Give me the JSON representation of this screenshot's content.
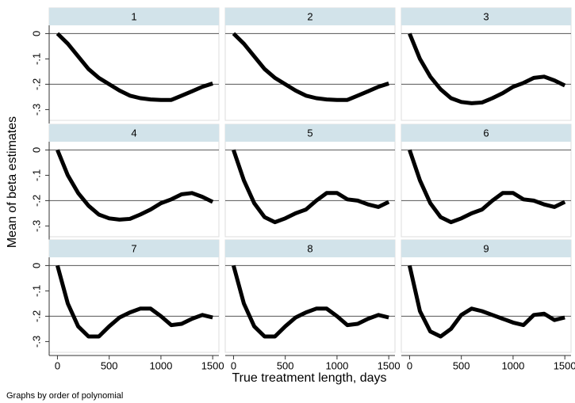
{
  "chart_data": {
    "type": "line",
    "ylabel": "Mean of beta estimates",
    "xlabel": "True treatment length, days",
    "note": "Graphs by order of polynomial",
    "color": "#000000",
    "header_color": "#d2e3ea",
    "xlim": [
      -80,
      1560
    ],
    "ylim": [
      -0.33,
      0.02
    ],
    "xticks": [
      0,
      500,
      1000,
      1500
    ],
    "yticks": [
      {
        "value": 0,
        "label": "0"
      },
      {
        "value": -0.1,
        "label": "-.1"
      },
      {
        "value": -0.2,
        "label": "-.2"
      },
      {
        "value": -0.3,
        "label": "-.3"
      }
    ],
    "ygrid": [
      0,
      -0.2
    ],
    "x": [
      0,
      100,
      200,
      300,
      400,
      500,
      600,
      700,
      800,
      900,
      1000,
      1100,
      1200,
      1300,
      1400,
      1500
    ],
    "panels": [
      {
        "title": "1",
        "values": [
          0,
          -0.04,
          -0.09,
          -0.14,
          -0.175,
          -0.2,
          -0.225,
          -0.245,
          -0.255,
          -0.26,
          -0.262,
          -0.262,
          -0.245,
          -0.228,
          -0.21,
          -0.197
        ]
      },
      {
        "title": "2",
        "values": [
          0,
          -0.04,
          -0.09,
          -0.14,
          -0.175,
          -0.2,
          -0.225,
          -0.245,
          -0.255,
          -0.26,
          -0.262,
          -0.262,
          -0.245,
          -0.228,
          -0.21,
          -0.197
        ]
      },
      {
        "title": "3",
        "values": [
          0,
          -0.1,
          -0.17,
          -0.22,
          -0.255,
          -0.27,
          -0.275,
          -0.272,
          -0.255,
          -0.235,
          -0.21,
          -0.195,
          -0.175,
          -0.17,
          -0.185,
          -0.205
        ]
      },
      {
        "title": "4",
        "values": [
          0,
          -0.1,
          -0.17,
          -0.22,
          -0.255,
          -0.27,
          -0.275,
          -0.272,
          -0.255,
          -0.235,
          -0.21,
          -0.195,
          -0.175,
          -0.17,
          -0.185,
          -0.205
        ]
      },
      {
        "title": "5",
        "values": [
          0,
          -0.12,
          -0.21,
          -0.265,
          -0.285,
          -0.27,
          -0.25,
          -0.235,
          -0.2,
          -0.17,
          -0.17,
          -0.195,
          -0.2,
          -0.215,
          -0.225,
          -0.205
        ]
      },
      {
        "title": "6",
        "values": [
          0,
          -0.12,
          -0.21,
          -0.265,
          -0.285,
          -0.27,
          -0.25,
          -0.235,
          -0.2,
          -0.17,
          -0.17,
          -0.195,
          -0.2,
          -0.215,
          -0.225,
          -0.205
        ]
      },
      {
        "title": "7",
        "values": [
          0,
          -0.15,
          -0.24,
          -0.28,
          -0.28,
          -0.24,
          -0.205,
          -0.185,
          -0.17,
          -0.17,
          -0.2,
          -0.235,
          -0.23,
          -0.21,
          -0.195,
          -0.205
        ]
      },
      {
        "title": "8",
        "values": [
          0,
          -0.15,
          -0.24,
          -0.28,
          -0.28,
          -0.24,
          -0.205,
          -0.185,
          -0.17,
          -0.17,
          -0.2,
          -0.235,
          -0.23,
          -0.21,
          -0.195,
          -0.205
        ]
      },
      {
        "title": "9",
        "values": [
          0,
          -0.18,
          -0.26,
          -0.28,
          -0.25,
          -0.195,
          -0.17,
          -0.18,
          -0.195,
          -0.21,
          -0.225,
          -0.235,
          -0.195,
          -0.19,
          -0.215,
          -0.205
        ]
      }
    ]
  }
}
